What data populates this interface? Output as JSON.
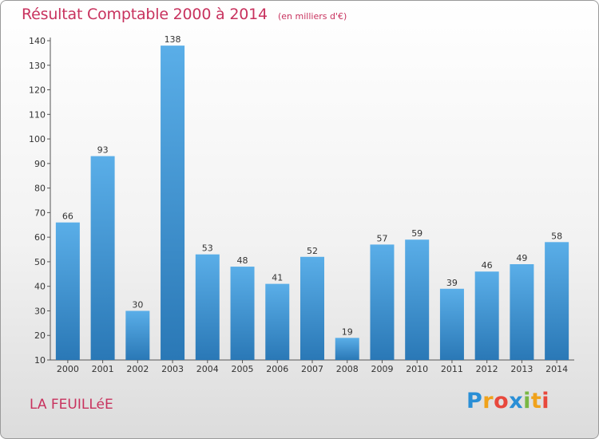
{
  "header": {
    "title": "Résultat Comptable 2000 à 2014",
    "subtitle": "(en milliers d'€)"
  },
  "footer": {
    "place": "LA FEUILLéE",
    "brand_letters": [
      "P",
      "r",
      "o",
      "x",
      "i",
      "t",
      "i"
    ]
  },
  "colors": {
    "bar_top": "#5aaee8",
    "bar_bottom": "#2a78b6",
    "title": "#c8325e"
  },
  "chart_data": {
    "type": "bar",
    "title": "Résultat Comptable 2000 à 2014",
    "subtitle": "(en milliers d'€)",
    "xlabel": "",
    "ylabel": "",
    "categories": [
      "2000",
      "2001",
      "2002",
      "2003",
      "2004",
      "2005",
      "2006",
      "2007",
      "2008",
      "2009",
      "2010",
      "2011",
      "2012",
      "2013",
      "2014"
    ],
    "values": [
      66,
      93,
      30,
      138,
      53,
      48,
      41,
      52,
      19,
      57,
      59,
      39,
      46,
      49,
      58
    ],
    "ylim": [
      10,
      140
    ],
    "yticks": [
      10,
      20,
      30,
      40,
      50,
      60,
      70,
      80,
      90,
      100,
      110,
      120,
      130,
      140
    ],
    "grid": false,
    "data_labels": true
  }
}
